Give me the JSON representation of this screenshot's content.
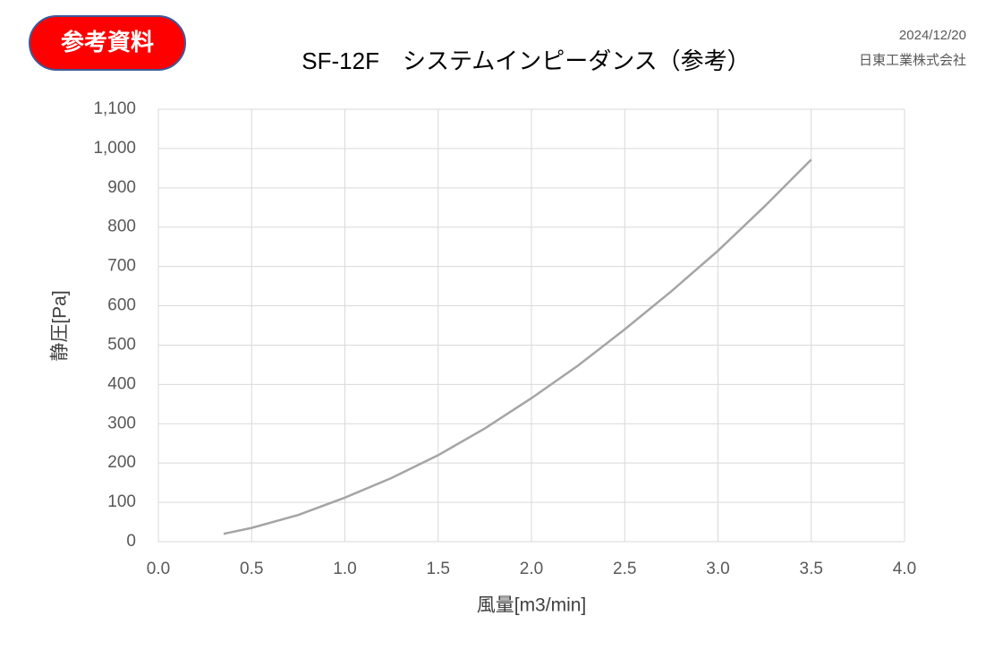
{
  "badge": "参考資料",
  "date": "2024/12/20",
  "company": "日東工業株式会社",
  "chart_data": {
    "type": "line",
    "title": "SF-12F　システムインピーダンス（参考）",
    "x_label": "風量[m3/min]",
    "y_label": "静圧[Pa]",
    "x": [
      0.35,
      0.5,
      0.75,
      1.0,
      1.25,
      1.5,
      1.75,
      2.0,
      2.25,
      2.5,
      2.75,
      3.0,
      3.25,
      3.5
    ],
    "series": [
      {
        "name": "システムインピーダンス",
        "color": "#a5a5a5",
        "values": [
          20,
          35,
          68,
          112,
          162,
          220,
          288,
          365,
          448,
          540,
          637,
          740,
          853,
          972
        ]
      }
    ],
    "xlim": [
      0,
      4
    ],
    "xticks": [
      {
        "value": 0,
        "label": "0.0"
      },
      0.5,
      {
        "value": 1,
        "label": "1.0"
      },
      1.5,
      {
        "value": 2,
        "label": "2.0"
      },
      2.5,
      {
        "value": 3,
        "label": "3.0"
      },
      3.5,
      {
        "value": 4,
        "label": "4.0"
      }
    ],
    "ylim": [
      0,
      1100
    ],
    "yticks": [
      0,
      100,
      200,
      300,
      400,
      500,
      600,
      700,
      800,
      900,
      {
        "value": 1000,
        "label": "1,000"
      },
      {
        "value": 1100,
        "label": "1,100"
      }
    ],
    "grid": true
  }
}
